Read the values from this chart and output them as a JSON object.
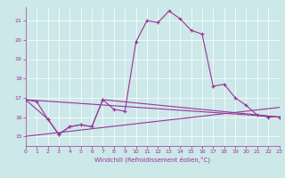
{
  "background_color": "#cce8e8",
  "line_color": "#993399",
  "xlabel": "Windchill (Refroidissement éolien,°C)",
  "xlim": [
    0,
    23
  ],
  "ylim": [
    14.5,
    21.7
  ],
  "yticks": [
    15,
    16,
    17,
    18,
    19,
    20,
    21
  ],
  "xticks": [
    0,
    1,
    2,
    3,
    4,
    5,
    6,
    7,
    8,
    9,
    10,
    11,
    12,
    13,
    14,
    15,
    16,
    17,
    18,
    19,
    20,
    21,
    22,
    23
  ],
  "line1_x": [
    0,
    1,
    2,
    3,
    4,
    5,
    6,
    7,
    8,
    9,
    10,
    11,
    12,
    13,
    14,
    15,
    16,
    17,
    18,
    19,
    20,
    21,
    22,
    23
  ],
  "line1_y": [
    16.9,
    16.8,
    15.9,
    15.1,
    15.5,
    15.6,
    15.5,
    16.9,
    16.4,
    16.3,
    19.9,
    21.0,
    20.9,
    21.5,
    21.1,
    20.5,
    20.3,
    17.6,
    17.7,
    17.0,
    16.6,
    16.1,
    16.0,
    16.0
  ],
  "line2_x": [
    0,
    2,
    3,
    4,
    5,
    6,
    7,
    23
  ],
  "line2_y": [
    16.9,
    15.9,
    15.1,
    15.5,
    15.6,
    15.5,
    16.9,
    16.0
  ],
  "line3_x": [
    0,
    23
  ],
  "line3_y": [
    16.9,
    16.0
  ],
  "line4_x": [
    0,
    23
  ],
  "line4_y": [
    15.0,
    16.5
  ]
}
